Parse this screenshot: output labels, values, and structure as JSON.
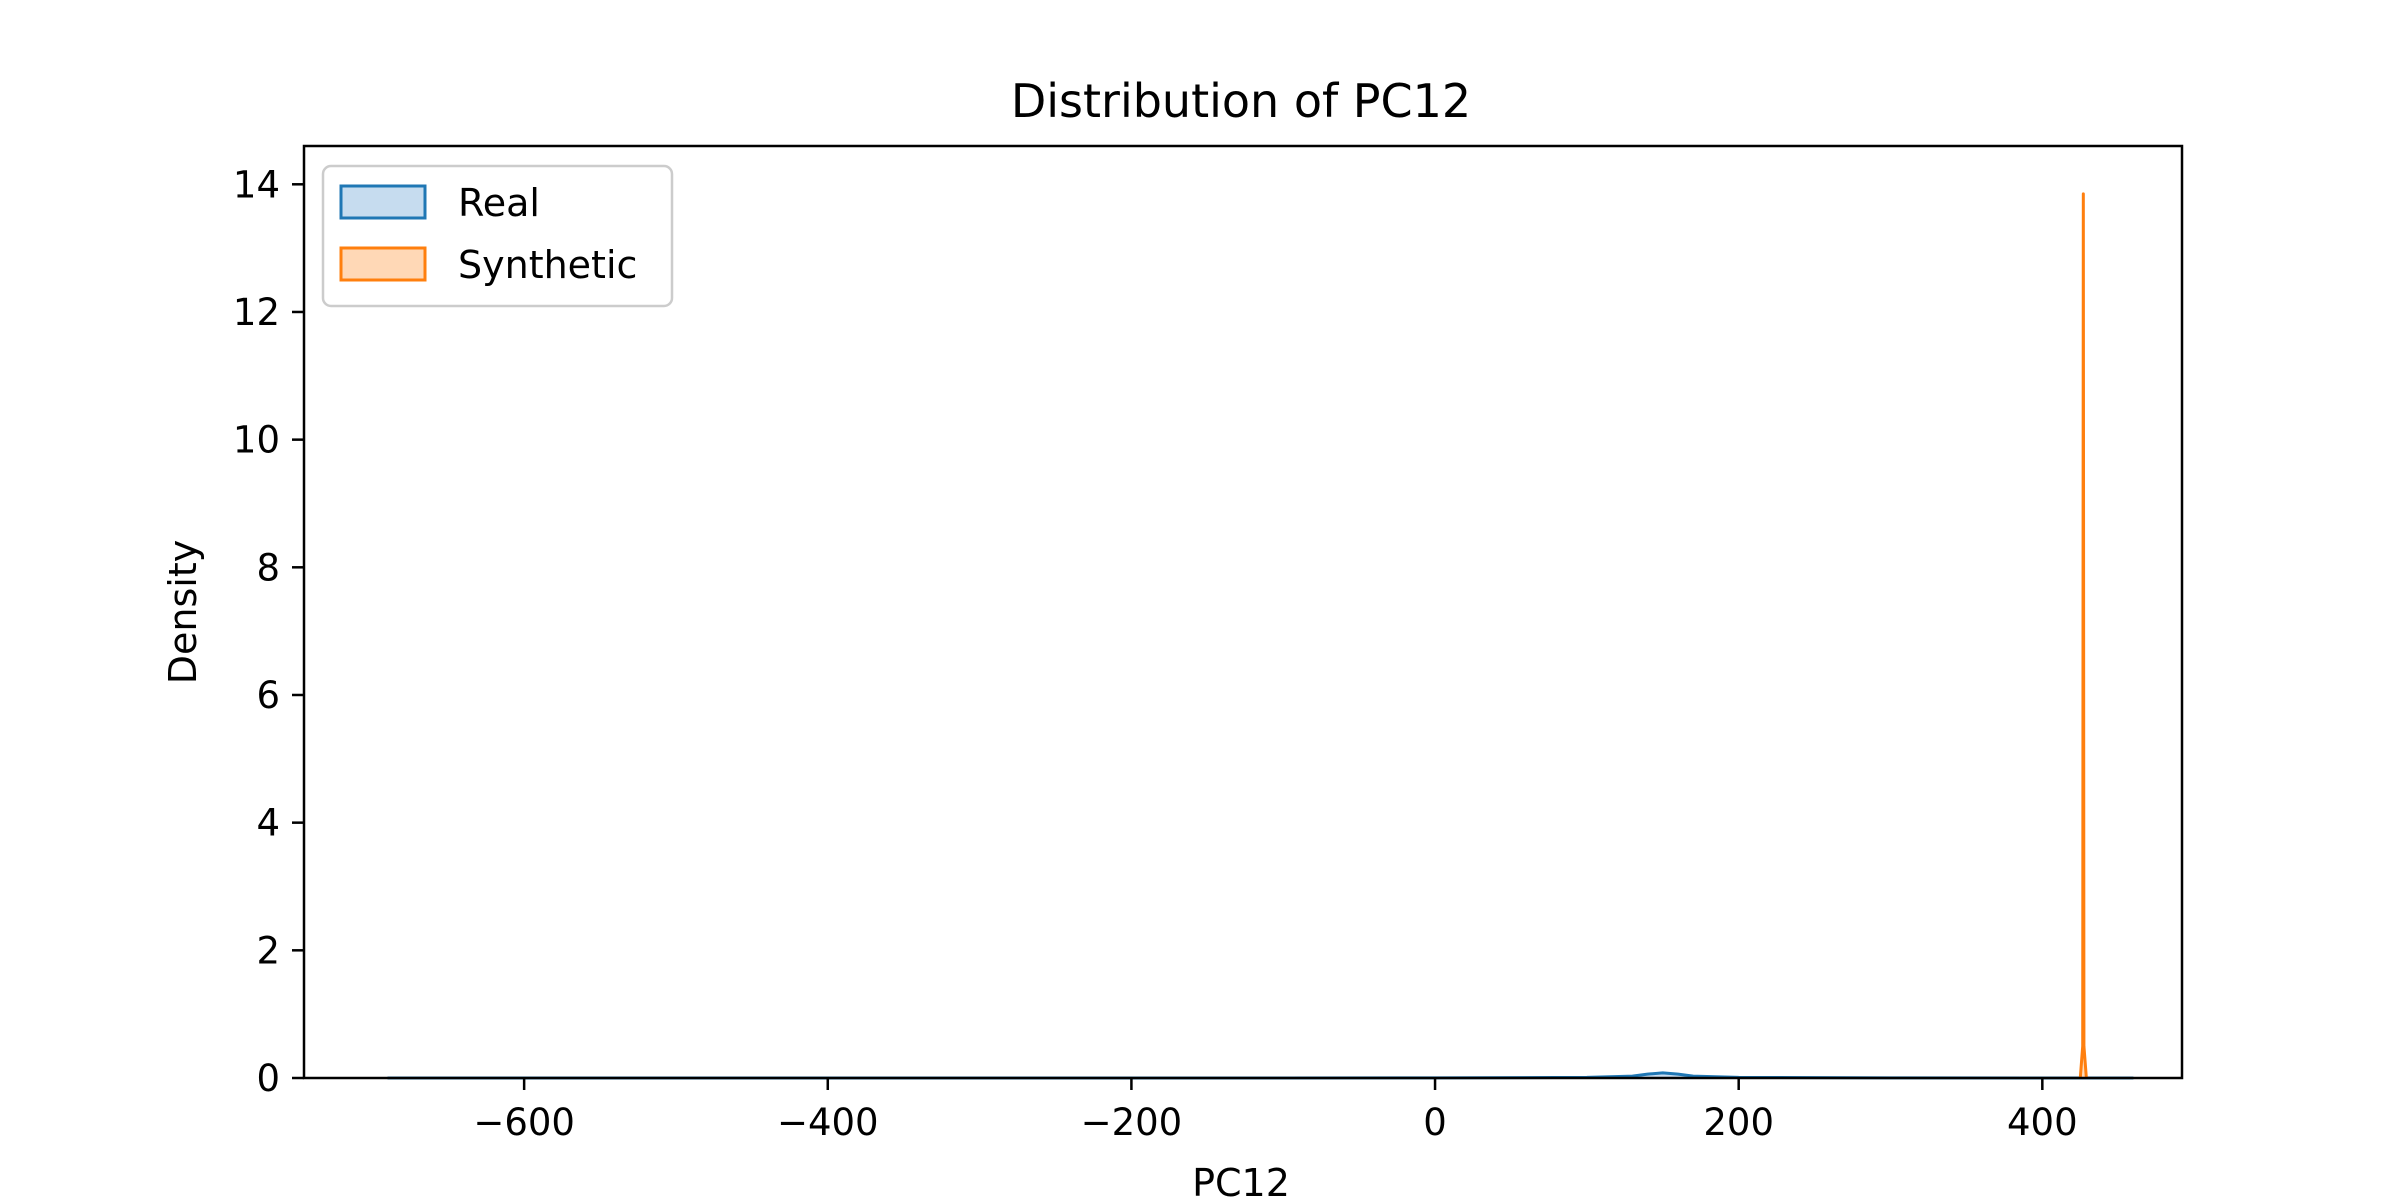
{
  "chart_data": {
    "type": "area",
    "title": "Distribution of PC12",
    "xlabel": "PC12",
    "ylabel": "Density",
    "xlim": [
      -745,
      492
    ],
    "ylim": [
      0,
      14.6
    ],
    "xticks": [
      -600,
      -400,
      -200,
      0,
      200,
      400
    ],
    "xtick_labels": [
      "−600",
      "−400",
      "−200",
      "0",
      "200",
      "400"
    ],
    "yticks": [
      0,
      2,
      4,
      6,
      8,
      10,
      12,
      14
    ],
    "ytick_labels": [
      "0",
      "2",
      "4",
      "6",
      "8",
      "10",
      "12",
      "14"
    ],
    "grid": false,
    "legend_position": "top-left",
    "series": [
      {
        "name": "Real",
        "color": "#1f77b4",
        "fill": "#c6dcef",
        "x": [
          -690,
          -400,
          -100,
          0,
          100,
          130,
          140,
          150,
          160,
          170,
          200,
          300,
          420,
          460
        ],
        "y": [
          0,
          0,
          0,
          0.002,
          0.01,
          0.03,
          0.06,
          0.08,
          0.06,
          0.03,
          0.01,
          0.002,
          0,
          0
        ]
      },
      {
        "name": "Synthetic",
        "color": "#ff7f0e",
        "fill": "#ffd8b6",
        "x": [
          425,
          426.6,
          427,
          427.4,
          429
        ],
        "y": [
          0,
          0.5,
          13.85,
          0.5,
          0
        ]
      }
    ]
  }
}
